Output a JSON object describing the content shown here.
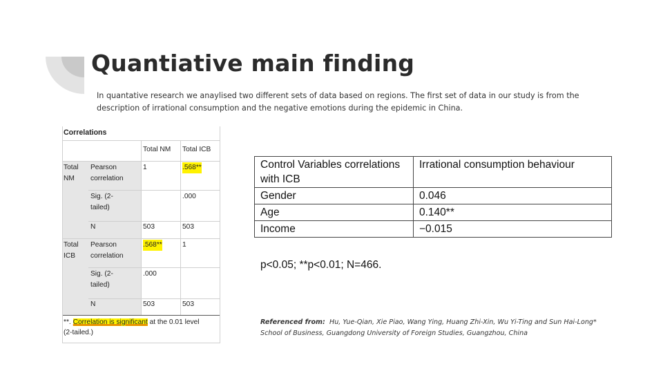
{
  "slide": {
    "title": "Quantiative main finding",
    "intro": "In quantative research we anaylised two different sets of data based on regions. The first set of data in our study is from the description of irrational consumption and the negative emotions during the epidemic in China.",
    "colors": {
      "title": "#2b2b2b",
      "decoration": "#e3e3e3",
      "highlight": "#fff200"
    }
  },
  "correlations_table": {
    "caption": "Correlations",
    "col_headers": [
      "Total NM",
      "Total ICB"
    ],
    "groups": [
      {
        "label": [
          "Total",
          "NM"
        ],
        "rows": [
          {
            "stat": [
              "Pearson",
              "correlation"
            ],
            "v1": "1",
            "v2": ".568**"
          },
          {
            "stat": [
              "Sig.  (2-",
              "tailed)"
            ],
            "v1": "",
            "v2": ".000"
          },
          {
            "stat": [
              "N"
            ],
            "v1": "503",
            "v2": "503"
          }
        ]
      },
      {
        "label": [
          "Total",
          "ICB"
        ],
        "rows": [
          {
            "stat": [
              "Pearson",
              "correlation"
            ],
            "v1": ".568**",
            "v2": "1"
          },
          {
            "stat": [
              "Sig.  (2-",
              "tailed)"
            ],
            "v1": ".000",
            "v2": ""
          },
          {
            "stat": [
              "N"
            ],
            "v1": "503",
            "v2": "503"
          }
        ]
      }
    ],
    "footnote_prefix": "**.",
    "footnote_highlight": "Correlation is significant",
    "footnote_rest": " at the 0.01 level",
    "footnote_line2": "(2-tailed.)"
  },
  "control_table": {
    "header": [
      "Control Variables correlations with ICB",
      "Irrational consumption behaviour"
    ],
    "rows": [
      [
        "Gender",
        "0.046"
      ],
      [
        "Age",
        "0.140**"
      ],
      [
        "Income",
        "−0.015"
      ]
    ]
  },
  "significance_note": "p<0.05; **p<0.01; N=466.",
  "reference": {
    "label": "Referenced from:",
    "authors": "Hu, Yue-Qian, Xie Piao, Wang Ying, Huang Zhi-Xin, Wu Yi-Ting and Sun Hai-Long*",
    "affiliation": "School of Business, Guangdong University of Foreign Studies, Guangzhou, China"
  }
}
